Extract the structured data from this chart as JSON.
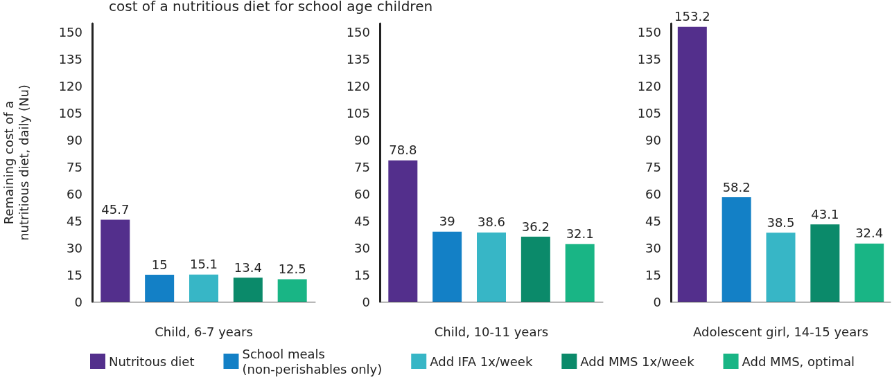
{
  "chart_data": [
    {
      "type": "bar",
      "title": "cost of a nutritious diet for school age children",
      "ylabel": "Remaining cost of a\nnutritious diet, daily (Nu)",
      "xlabel": "Child, 6-7 years",
      "categories": [
        null
      ],
      "series": [
        {
          "name": "Nutritous diet",
          "color": "#532f8c",
          "values": [
            45.7
          ]
        },
        {
          "name": "School meals\n(non-perishables only)",
          "color": "#1380c6",
          "values": [
            15
          ]
        },
        {
          "name": "Add IFA 1x/week",
          "color": "#37b6c6",
          "values": [
            15.1
          ]
        },
        {
          "name": "Add MMS 1x/week",
          "color": "#0b8a6a",
          "values": [
            13.4
          ]
        },
        {
          "name": "Add MMS, optimal",
          "color": "#19b585",
          "values": [
            12.5
          ]
        }
      ],
      "ylim": [
        0,
        155
      ],
      "yticks": [
        0,
        15,
        30,
        45,
        60,
        75,
        90,
        105,
        120,
        135,
        150
      ],
      "data_labels": true,
      "legend": "bottom"
    },
    {
      "type": "bar",
      "xlabel": "Child, 10-11 years",
      "categories": [
        null
      ],
      "series": [
        {
          "color": "#532f8c",
          "values": [
            78.8
          ]
        },
        {
          "color": "#1380c6",
          "values": [
            39
          ]
        },
        {
          "color": "#37b6c6",
          "values": [
            38.6
          ]
        },
        {
          "color": "#0b8a6a",
          "values": [
            36.2
          ]
        },
        {
          "color": "#19b585",
          "values": [
            32.1
          ]
        }
      ],
      "ylim": [
        0,
        155
      ],
      "yticks": [
        0,
        15,
        30,
        45,
        60,
        75,
        90,
        105,
        120,
        135,
        150
      ],
      "data_labels": true
    },
    {
      "type": "bar",
      "xlabel": "Adolescent girl, 14-15 years",
      "categories": [
        null
      ],
      "series": [
        {
          "color": "#532f8c",
          "values": [
            153.2
          ]
        },
        {
          "color": "#1380c6",
          "values": [
            58.2
          ]
        },
        {
          "color": "#37b6c6",
          "values": [
            38.5
          ]
        },
        {
          "color": "#0b8a6a",
          "values": [
            43.1
          ]
        },
        {
          "color": "#19b585",
          "values": [
            32.4
          ]
        }
      ],
      "ylim": [
        0,
        155
      ],
      "yticks": [
        0,
        15,
        30,
        45,
        60,
        75,
        90,
        105,
        120,
        135,
        150
      ],
      "data_labels": true
    }
  ]
}
